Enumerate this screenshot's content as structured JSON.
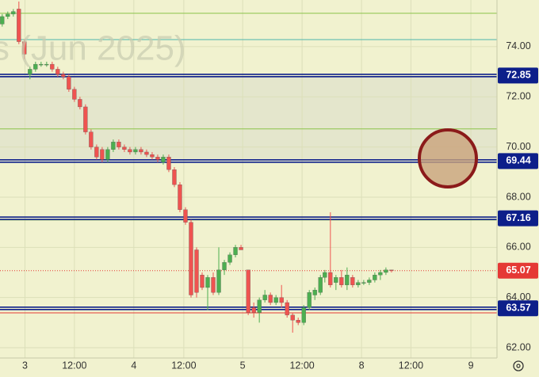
{
  "chart_data": {
    "type": "candlestick",
    "watermark": "s (Jun 2025)",
    "x": [
      0,
      1,
      2,
      3,
      4,
      5,
      6,
      7,
      8,
      9,
      10,
      11,
      12,
      13,
      14,
      15,
      16,
      17,
      18,
      19,
      20,
      21,
      22,
      23,
      24,
      25,
      26,
      27,
      28,
      29,
      30,
      31,
      32,
      33,
      34,
      35,
      36,
      37,
      38,
      39,
      40,
      41,
      42,
      43,
      44.3,
      45.3,
      46.3,
      47.3,
      48.3,
      49.3,
      50.3,
      51.3,
      52.3,
      53.3,
      54.3,
      55.3,
      56.3,
      57.3,
      58.1,
      59.1,
      60.1,
      61.1,
      62.1,
      63.1,
      64.1,
      65.1,
      66.1,
      67.1,
      68.1,
      69.1,
      70.1
    ],
    "open": [
      74.9,
      75.2,
      75.3,
      75.5,
      74.2,
      72.9,
      73.1,
      73.3,
      73.3,
      73.3,
      73.1,
      72.9,
      72.8,
      72.3,
      71.9,
      71.6,
      70.6,
      70.0,
      69.9,
      69.5,
      69.9,
      70.2,
      70.0,
      69.9,
      69.8,
      69.9,
      69.8,
      69.7,
      69.6,
      69.4,
      69.6,
      69.1,
      68.5,
      67.5,
      67.0,
      65.9,
      64.9,
      64.4,
      64.8,
      64.2,
      65.1,
      65.4,
      65.7,
      66.0,
      65.1,
      63.6,
      63.4,
      63.9,
      64.1,
      63.8,
      64.0,
      63.8,
      63.3,
      63.1,
      63.0,
      63.6,
      64.1,
      64.2,
      64.8,
      65.0,
      64.6,
      64.8,
      64.5,
      64.8,
      64.5,
      64.6,
      64.6,
      64.7,
      64.9,
      65.0,
      65.1
    ],
    "high": [
      75.3,
      75.4,
      75.5,
      75.8,
      74.3,
      73.2,
      73.4,
      73.4,
      73.4,
      73.4,
      73.2,
      73.0,
      72.9,
      72.4,
      72.0,
      71.7,
      70.7,
      70.1,
      70.0,
      70.0,
      70.3,
      70.3,
      70.1,
      70.0,
      70.0,
      70.0,
      69.9,
      69.8,
      69.7,
      69.7,
      69.7,
      69.2,
      68.6,
      67.6,
      67.1,
      66.0,
      65.0,
      64.9,
      65.0,
      66.0,
      65.5,
      65.8,
      66.1,
      66.1,
      65.1,
      63.8,
      64.0,
      64.3,
      64.2,
      64.1,
      64.5,
      63.9,
      63.4,
      63.2,
      63.7,
      64.3,
      64.4,
      64.9,
      65.1,
      67.4,
      64.9,
      65.1,
      65.2,
      64.9,
      64.7,
      64.7,
      64.8,
      65.0,
      65.1,
      65.2,
      65.1
    ],
    "low": [
      74.8,
      75.1,
      75.2,
      74.1,
      73.5,
      72.7,
      73.0,
      73.2,
      73.2,
      73.0,
      72.8,
      72.7,
      72.2,
      71.8,
      71.5,
      70.5,
      69.9,
      69.5,
      69.4,
      69.4,
      69.8,
      69.9,
      69.8,
      69.7,
      69.7,
      69.7,
      69.6,
      69.5,
      69.4,
      69.3,
      69.0,
      68.4,
      67.4,
      66.9,
      64.0,
      64.0,
      64.3,
      63.5,
      64.1,
      64.1,
      64.9,
      65.3,
      65.6,
      65.9,
      63.3,
      63.2,
      63.0,
      63.8,
      63.7,
      63.7,
      63.6,
      63.2,
      62.6,
      62.9,
      62.9,
      63.5,
      63.9,
      64.1,
      64.6,
      64.4,
      64.3,
      64.4,
      64.3,
      64.4,
      64.4,
      64.5,
      64.5,
      64.6,
      64.7,
      64.9,
      65.0
    ],
    "close": [
      75.2,
      75.3,
      75.4,
      74.2,
      73.7,
      73.1,
      73.3,
      73.3,
      73.3,
      73.1,
      72.9,
      72.8,
      72.3,
      71.9,
      71.6,
      70.6,
      70.0,
      69.6,
      69.5,
      69.9,
      70.2,
      70.0,
      69.9,
      69.8,
      69.9,
      69.8,
      69.7,
      69.6,
      69.5,
      69.6,
      69.1,
      68.5,
      67.5,
      67.0,
      64.1,
      64.2,
      64.4,
      64.8,
      64.2,
      65.1,
      65.4,
      65.7,
      66.0,
      65.9,
      63.4,
      63.4,
      63.9,
      64.1,
      63.8,
      64.0,
      63.8,
      63.3,
      63.1,
      63.0,
      63.6,
      64.2,
      64.3,
      64.8,
      65.0,
      64.5,
      64.8,
      64.5,
      64.9,
      64.5,
      64.6,
      64.6,
      64.7,
      64.9,
      65.0,
      65.1,
      65.07
    ],
    "up_color": "#4caf50",
    "down_color": "#ef5350",
    "xlim": [
      -0.4,
      89.1
    ],
    "xticks": [
      {
        "value": 4.1,
        "label": "3"
      },
      {
        "value": 13,
        "label": "12:00"
      },
      {
        "value": 23.7,
        "label": "4"
      },
      {
        "value": 32.7,
        "label": "12:00"
      },
      {
        "value": 43.3,
        "label": "5"
      },
      {
        "value": 54,
        "label": "12:00"
      },
      {
        "value": 64.7,
        "label": "8"
      },
      {
        "value": 73.6,
        "label": "12:00"
      },
      {
        "value": 84.4,
        "label": "9"
      }
    ],
    "ylim": [
      61.59,
      75.86
    ],
    "yticks": [
      {
        "value": 62,
        "label": "62.00"
      },
      {
        "value": 64,
        "label": "64.00"
      },
      {
        "value": 66,
        "label": "66.00"
      },
      {
        "value": 68,
        "label": "68.00"
      },
      {
        "value": 70,
        "label": "70.00"
      },
      {
        "value": 72,
        "label": "72.00"
      },
      {
        "value": 74,
        "label": "74.00"
      }
    ],
    "grid": true,
    "levels": [
      {
        "value": 72.85,
        "label": "72.85",
        "color": "#0d1f8a"
      },
      {
        "value": 69.44,
        "label": "69.44",
        "color": "#0d1f8a"
      },
      {
        "value": 67.16,
        "label": "67.16",
        "color": "#0d1f8a"
      },
      {
        "value": 63.57,
        "label": "63.57",
        "color": "#0d1f8a"
      }
    ],
    "price_line": {
      "value": 65.07,
      "label": "65.07",
      "color": "#e53935"
    },
    "guides": [
      {
        "value": 75.33,
        "color": "#8bc34a"
      },
      {
        "value": 74.28,
        "color": "#4db6ac"
      },
      {
        "value": 70.72,
        "color": "#8bc34a"
      },
      {
        "value": 67.09,
        "color": "#8bc34a"
      },
      {
        "value": 63.39,
        "color": "#e53935"
      }
    ]
  }
}
